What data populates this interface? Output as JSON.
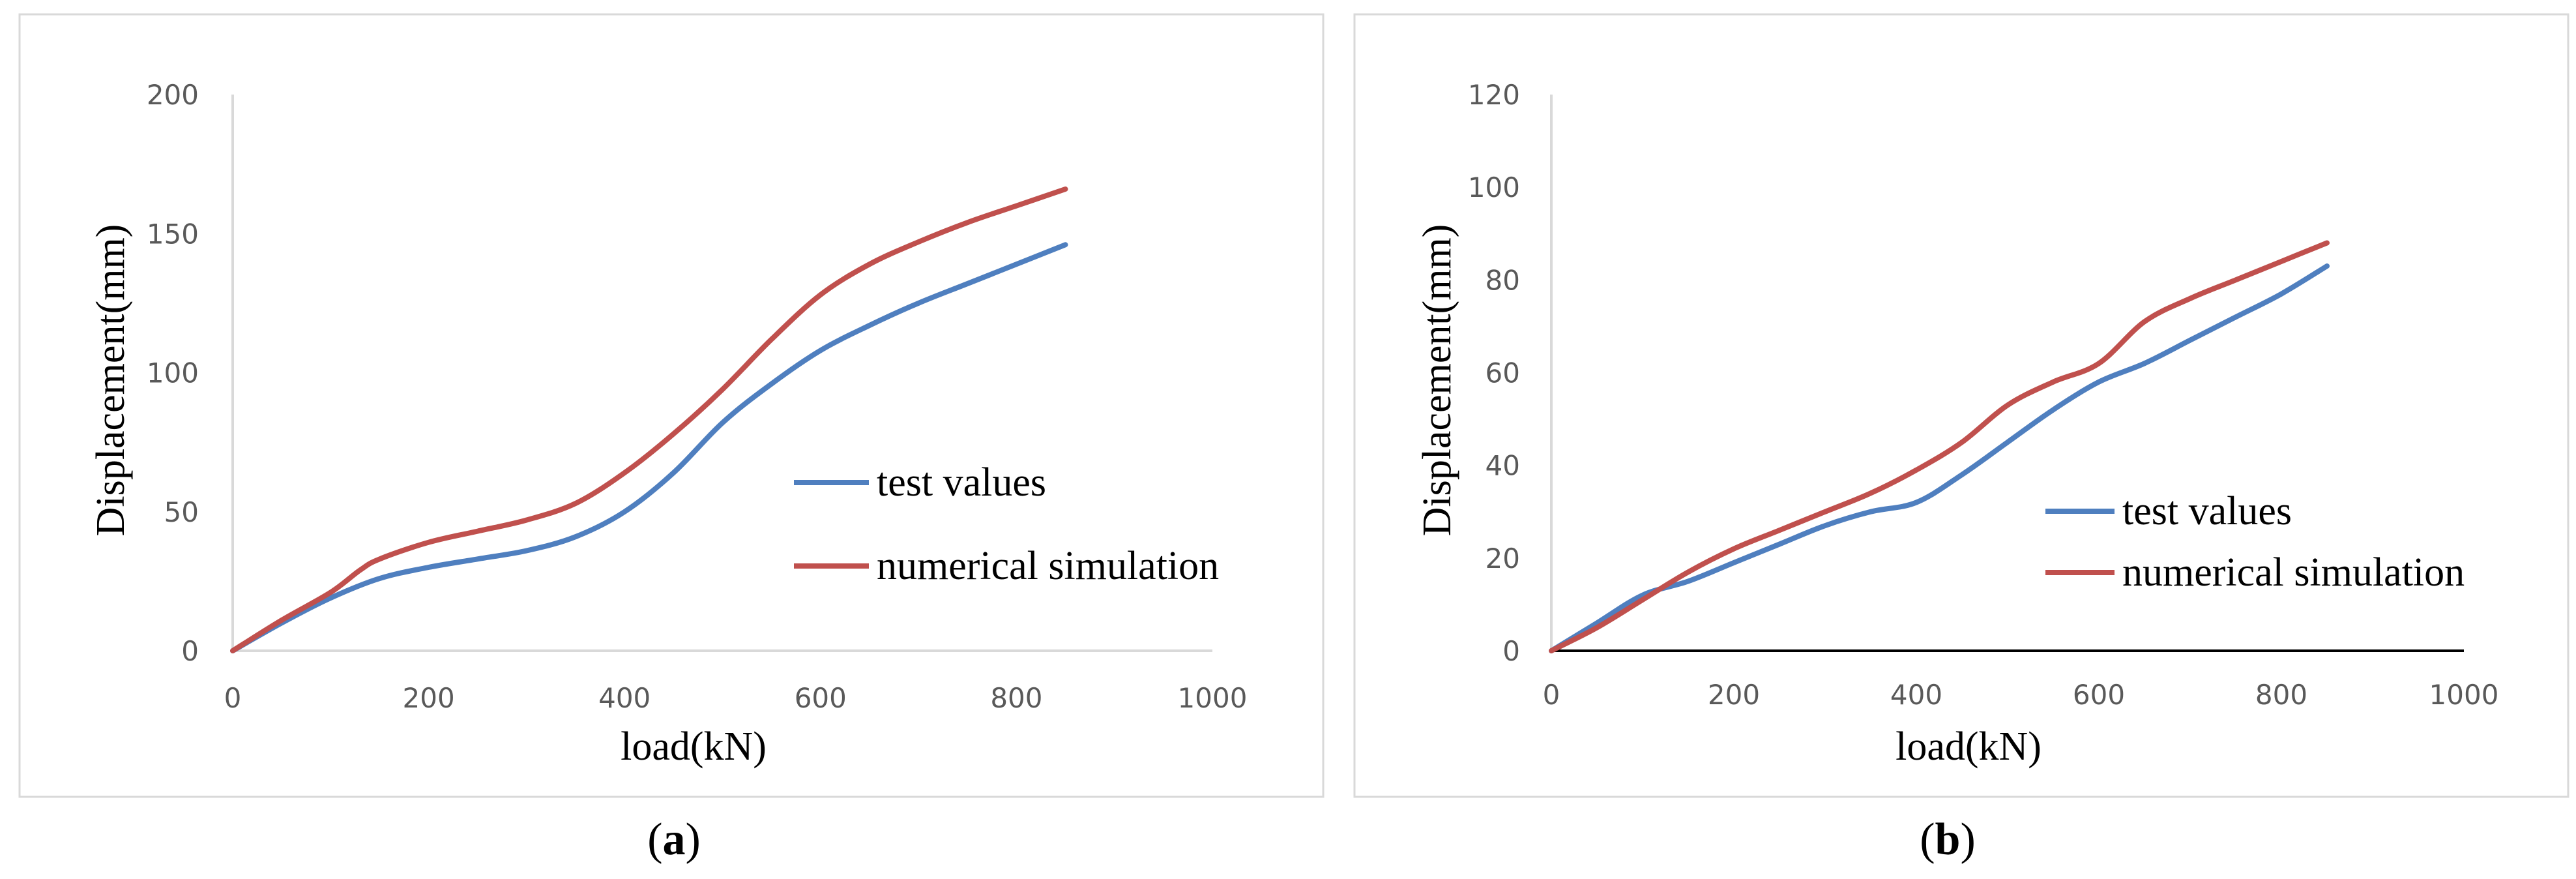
{
  "chart_data": [
    {
      "type": "line",
      "panel_label": "a",
      "title": "",
      "xlabel": "load(kN)",
      "ylabel": "Displacement(mm)",
      "xlim": [
        0,
        1000
      ],
      "ylim": [
        0,
        200
      ],
      "x_ticks": [
        "0",
        "200",
        "400",
        "600",
        "800",
        "1000"
      ],
      "y_ticks": [
        "0",
        "50",
        "100",
        "150",
        "200"
      ],
      "grid": false,
      "legend_position": "center-right",
      "series": [
        {
          "name": "test values",
          "color": "#4f7fbf",
          "x": [
            0,
            50,
            100,
            150,
            200,
            250,
            300,
            350,
            400,
            450,
            500,
            550,
            600,
            650,
            700,
            750,
            800,
            850
          ],
          "y": [
            0,
            10,
            19,
            26,
            30,
            33,
            36,
            41,
            50,
            64,
            82,
            96,
            108,
            117,
            125,
            132,
            139,
            146
          ]
        },
        {
          "name": "numerical simulation",
          "color": "#c0504d",
          "x": [
            0,
            50,
            100,
            130,
            150,
            200,
            250,
            300,
            350,
            400,
            450,
            500,
            550,
            600,
            650,
            700,
            750,
            800,
            850
          ],
          "y": [
            0,
            11,
            21,
            29,
            33,
            39,
            43,
            47,
            53,
            64,
            78,
            94,
            112,
            128,
            139,
            147,
            154,
            160,
            166
          ]
        }
      ]
    },
    {
      "type": "line",
      "panel_label": "b",
      "title": "",
      "xlabel": "load(kN)",
      "ylabel": "Displacement(mm)",
      "xlim": [
        0,
        1000
      ],
      "ylim": [
        0,
        120
      ],
      "x_ticks": [
        "0",
        "200",
        "400",
        "600",
        "800",
        "1000"
      ],
      "y_ticks": [
        "0",
        "20",
        "40",
        "60",
        "80",
        "100",
        "120"
      ],
      "grid": false,
      "legend_position": "lower-right",
      "series": [
        {
          "name": "test values",
          "color": "#4f7fbf",
          "x": [
            0,
            50,
            100,
            150,
            200,
            250,
            300,
            350,
            400,
            450,
            500,
            550,
            600,
            650,
            700,
            750,
            800,
            850
          ],
          "y": [
            0,
            6,
            12,
            15,
            19,
            23,
            27,
            30,
            32,
            38,
            45,
            52,
            58,
            62,
            67,
            72,
            77,
            83
          ]
        },
        {
          "name": "numerical simulation",
          "color": "#c0504d",
          "x": [
            0,
            50,
            100,
            150,
            200,
            250,
            300,
            350,
            400,
            450,
            500,
            550,
            600,
            650,
            700,
            750,
            800,
            850
          ],
          "y": [
            0,
            5,
            11,
            17,
            22,
            26,
            30,
            34,
            39,
            45,
            53,
            58,
            62,
            71,
            76,
            80,
            84,
            88
          ]
        }
      ]
    }
  ]
}
